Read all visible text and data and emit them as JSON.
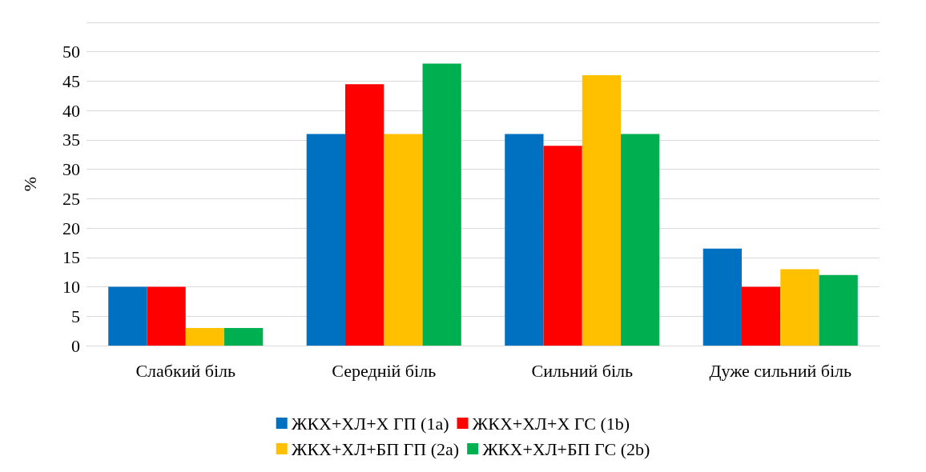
{
  "chart_data": {
    "type": "bar",
    "ylabel": "%",
    "categories": [
      "Слабкий біль",
      "Середній біль",
      "Сильний біль",
      "Дуже сильний біль"
    ],
    "series": [
      {
        "name": "ЖКХ+ХЛ+Х ГП (1a)",
        "color": "#0070c0",
        "values": [
          10,
          36,
          36,
          16.5
        ]
      },
      {
        "name": "ЖКХ+ХЛ+Х ГС (1b)",
        "color": "#ff0000",
        "values": [
          10,
          44.5,
          34,
          10
        ]
      },
      {
        "name": "ЖКХ+ХЛ+БП ГП (2a)",
        "color": "#ffc000",
        "values": [
          3,
          36,
          46,
          13
        ]
      },
      {
        "name": "ЖКХ+ХЛ+БП ГС (2b)",
        "color": "#00b050",
        "values": [
          3,
          48,
          36,
          12
        ]
      }
    ],
    "ylim": [
      0,
      55
    ],
    "yticks": [
      0,
      5,
      10,
      15,
      20,
      25,
      30,
      35,
      40,
      45,
      50,
      {
        "value": 55,
        "label": null
      }
    ],
    "grid": "y",
    "legend": "bottom"
  }
}
